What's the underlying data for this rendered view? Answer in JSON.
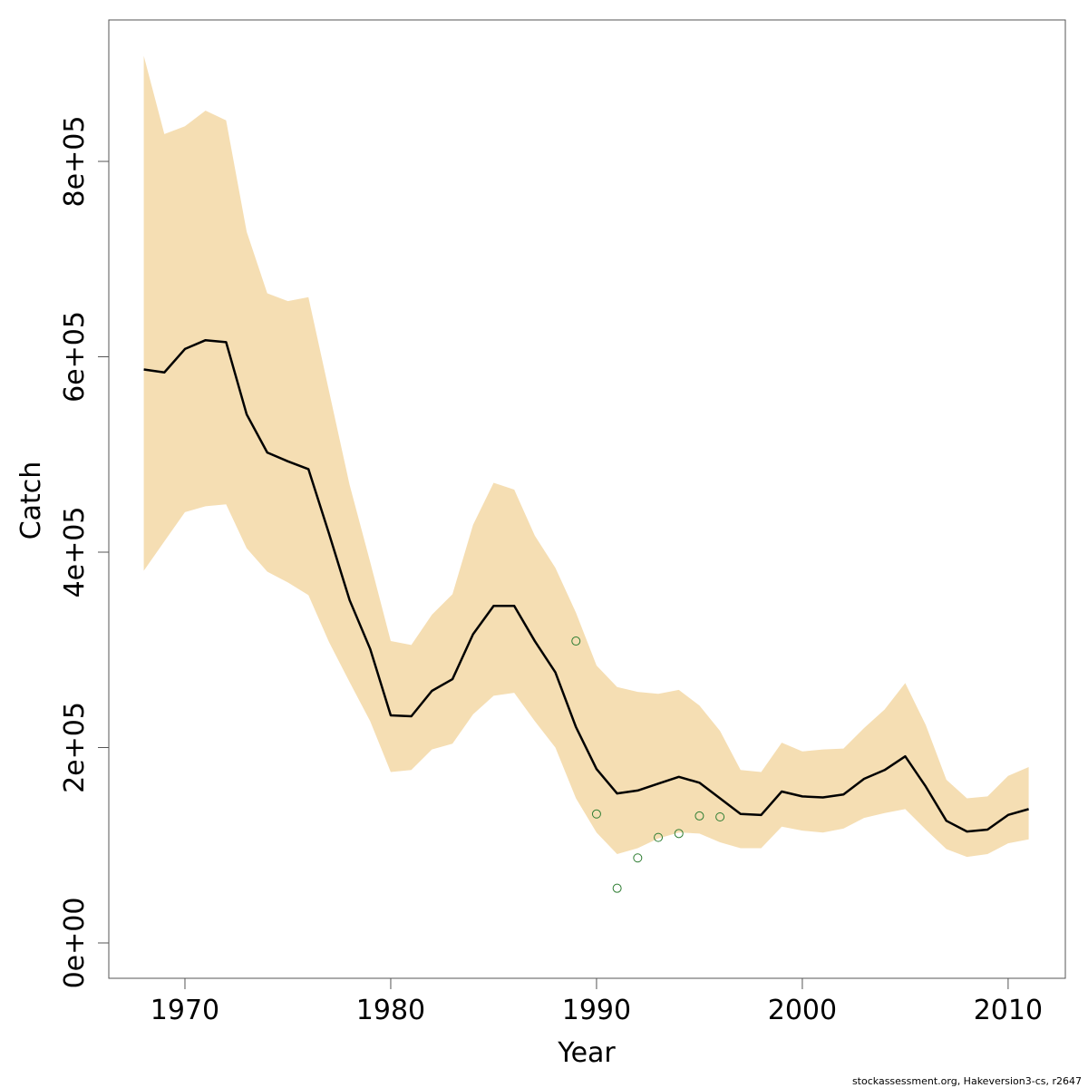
{
  "chart_data": {
    "type": "line",
    "x_label": "Year",
    "y_label": "Catch",
    "footnote": "stockassessment.org, Hakeversion3-cs, r2647",
    "x": [
      1968,
      1969,
      1970,
      1971,
      1972,
      1973,
      1974,
      1975,
      1976,
      1977,
      1978,
      1979,
      1980,
      1981,
      1982,
      1983,
      1984,
      1985,
      1986,
      1987,
      1988,
      1989,
      1990,
      1991,
      1992,
      1993,
      1994,
      1995,
      1996,
      1997,
      1998,
      1999,
      2000,
      2001,
      2002,
      2003,
      2004,
      2005,
      2006,
      2007,
      2008,
      2009,
      2010,
      2011
    ],
    "band": {
      "color": "#f5deb3",
      "upper": [
        908000,
        828000,
        836000,
        852000,
        842000,
        728000,
        665000,
        657000,
        661000,
        565000,
        469000,
        390000,
        309000,
        305000,
        336000,
        357000,
        428000,
        471000,
        464000,
        417000,
        384000,
        338000,
        284000,
        262000,
        257000,
        255000,
        259000,
        243000,
        217000,
        177000,
        175000,
        205000,
        196000,
        198000,
        199000,
        220000,
        239000,
        266000,
        223000,
        167000,
        148000,
        150000,
        171000,
        180000
      ],
      "lower": [
        381000,
        411000,
        441000,
        447000,
        449000,
        404000,
        380000,
        369000,
        356000,
        308000,
        267000,
        227000,
        175000,
        177000,
        198000,
        204000,
        234000,
        253000,
        256000,
        227000,
        200000,
        148000,
        113000,
        91000,
        97000,
        107000,
        113000,
        112000,
        103000,
        97000,
        97000,
        119000,
        115000,
        113000,
        117000,
        128000,
        133000,
        137000,
        116000,
        96000,
        88000,
        91000,
        102000,
        106000
      ]
    },
    "series": [
      {
        "color": "#000000",
        "values": [
          587000,
          584000,
          608000,
          617000,
          615000,
          541000,
          502000,
          493000,
          485000,
          419000,
          351000,
          301000,
          233000,
          232000,
          258000,
          270000,
          316000,
          345000,
          345000,
          309000,
          277000,
          221000,
          178000,
          153000,
          156000,
          163000,
          170000,
          164000,
          148000,
          132000,
          131000,
          155000,
          150000,
          149000,
          152000,
          168000,
          177000,
          191000,
          160000,
          125000,
          114000,
          116000,
          131000,
          137000
        ]
      }
    ],
    "points": {
      "color": "#2e7d32",
      "x": [
        1989,
        1990,
        1991,
        1992,
        1993,
        1994,
        1995,
        1996
      ],
      "values": [
        309000,
        132000,
        56000,
        87000,
        108000,
        112000,
        130000,
        129000
      ]
    },
    "xlim": [
      1966.3,
      2012.78
    ],
    "ylim": [
      -36200,
      944800
    ],
    "xticks": [
      1970,
      1980,
      1990,
      2000,
      2010
    ],
    "yticks": [
      {
        "value": 0,
        "label": "0e+00"
      },
      {
        "value": 200000,
        "label": "2e+05"
      },
      {
        "value": 400000,
        "label": "4e+05"
      },
      {
        "value": 600000,
        "label": "6e+05"
      },
      {
        "value": 800000,
        "label": "8e+05"
      }
    ]
  }
}
